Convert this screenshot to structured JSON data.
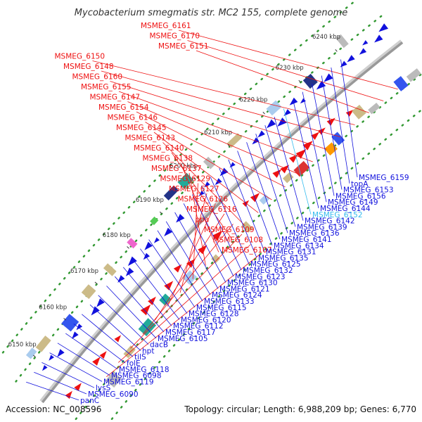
{
  "title": "Mycobacterium smegmatis str. MC2 155, complete genome",
  "footer": {
    "accession": "Accession: NC_008596",
    "summary": "Topology: circular; Length: 6,988,209 bp; Genes: 6,770"
  },
  "colors": {
    "forward": "#ee1111",
    "reverse": "#1111dd",
    "highlight": "#33bbee",
    "backbone": "#999999"
  },
  "ticks": [
    "6150 kbp",
    "6160 kbp",
    "6170 kbp",
    "6180 kbp",
    "6190 kbp",
    "6200 kbp",
    "6210 kbp",
    "6220 kbp",
    "6230 kbp",
    "6240 kbp"
  ],
  "forward_labels": [
    "MSMEG_6161",
    "MSMEG_6170",
    "MSMEG_6151",
    "MSMEG_6150",
    "MSMEG_6148",
    "MSMEG_6160",
    "MSMEG_6155",
    "MSMEG_6147",
    "MSMEG_6154",
    "MSMEG_6146",
    "MSMEG_6145",
    "MSMEG_6143",
    "MSMEG_6140",
    "MSMEG_6138",
    "MSMEG_6137",
    "MSMEG_6129",
    "MSMEG_6127",
    "MSMEG_6126",
    "MSMEG_6116",
    "ppa",
    "MSMEG_6109",
    "MSMEG_6108",
    "MSMEG_6107"
  ],
  "reverse_labels": [
    "MSMEG_6159",
    "topA",
    "MSMEG_6153",
    "MSMEG_6156",
    "MSMEG_6149",
    "MSMEG_6144",
    "MSMEG_6152",
    "MSMEG_6142",
    "MSMEG_6139",
    "MSMEG_6136",
    "MSMEG_6141",
    "MSMEG_6134",
    "MSMEG_6131",
    "MSMEG_6135",
    "MSMEG_6125",
    "MSMEG_6132",
    "MSMEG_6123",
    "MSMEG_6130",
    "MSMEG_6121",
    "MSMEG_6124",
    "MSMEG_6133",
    "MSMEG_6115",
    "MSMEG_6128",
    "MSMEG_6120",
    "MSMEG_6112",
    "MSMEG_6117",
    "MSMEG_6105",
    "dacB",
    "hpt",
    "tilS",
    "folE",
    "MSMEG_6118",
    "MSMEG_6098",
    "MSMEG_6119",
    "lysS",
    "MSMEG_6090",
    "panC"
  ]
}
